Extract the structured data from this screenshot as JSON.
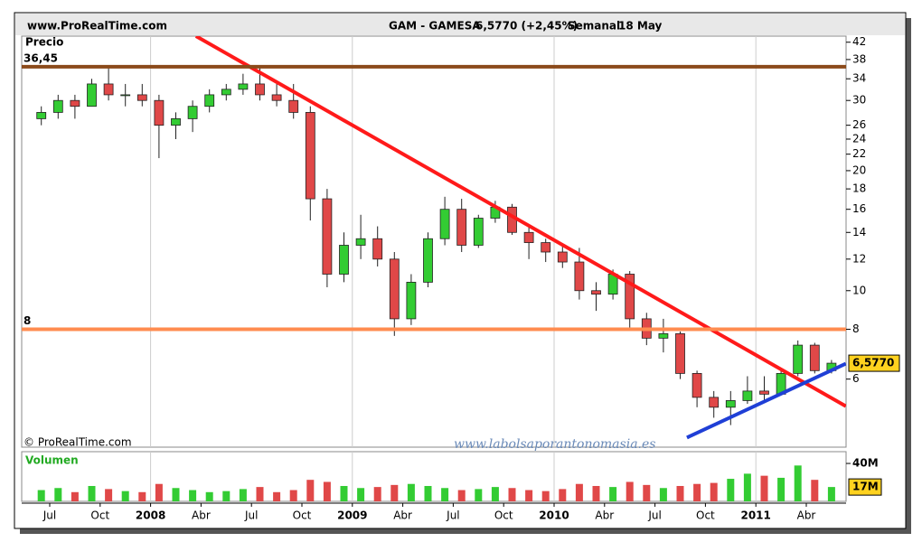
{
  "chart_data": {
    "type": "candlestick",
    "site": "www.ProRealTime.com",
    "title": "GAM - GAMESA",
    "quote": "6,5770 (+2,45%)",
    "period": "Semanal",
    "date": "18 May",
    "y_label": "Precio",
    "volume_label": "Volumen",
    "copyright": "© ProRealTime.com",
    "watermark": "www.labolsaporantonomasia.es",
    "categories": [
      null,
      "Jul",
      null,
      null,
      "Oct",
      null,
      null,
      "2008",
      null,
      null,
      "Abr",
      null,
      null,
      "Jul",
      null,
      null,
      "Oct",
      null,
      null,
      "2009",
      null,
      null,
      "Abr",
      null,
      null,
      "Jul",
      null,
      null,
      "Oct",
      null,
      null,
      "2010",
      null,
      null,
      "Abr",
      null,
      null,
      "Jul",
      null,
      null,
      "Oct",
      null,
      null,
      "2011",
      null,
      null,
      "Abr",
      null
    ],
    "open": [
      27,
      28,
      30,
      29,
      33,
      31,
      31,
      30,
      26,
      27,
      29,
      31,
      32,
      33,
      31,
      30,
      28,
      17,
      11,
      13,
      13.5,
      12,
      8.5,
      10.5,
      13.5,
      16,
      13,
      15.2,
      16.2,
      14,
      13.2,
      12.5,
      11.8,
      10,
      9.8,
      11,
      8.5,
      7.6,
      7.8,
      6.2,
      5.4,
      5.1,
      5.3,
      5.6,
      5.5,
      6.2,
      7.3,
      6.3
    ],
    "high": [
      29,
      31,
      31,
      34,
      36.5,
      33,
      33,
      31,
      28,
      30,
      32,
      33,
      35,
      36.5,
      33,
      33,
      29,
      18,
      14,
      15.5,
      14.5,
      12.5,
      11,
      14,
      17.2,
      17,
      15.5,
      16.8,
      16.5,
      14.5,
      13.5,
      13,
      12.8,
      10.5,
      11.3,
      11.2,
      8.8,
      8.5,
      7.9,
      6.3,
      5.6,
      5.6,
      6.1,
      6.1,
      6.3,
      7.5,
      7.4,
      6.7
    ],
    "low": [
      26,
      27,
      27,
      29,
      30,
      29,
      29,
      21.5,
      24,
      25,
      28,
      30,
      31,
      30,
      29,
      27,
      15,
      10.2,
      10.5,
      12,
      11.5,
      7.7,
      8.2,
      10.2,
      13,
      12.5,
      12.8,
      14.8,
      13.8,
      12,
      11.8,
      11.4,
      9.5,
      8.9,
      9.5,
      8,
      7.3,
      7,
      6,
      5.1,
      4.8,
      4.6,
      5.2,
      5.3,
      5.5,
      6.1,
      6.2,
      6.2
    ],
    "close": [
      28,
      30,
      29,
      33,
      31,
      31,
      30,
      26,
      27,
      29,
      31,
      32,
      33,
      31,
      30,
      28,
      17,
      11,
      13,
      13.5,
      12,
      8.5,
      10.5,
      13.5,
      16,
      13,
      15.2,
      16.2,
      14,
      13.2,
      12.5,
      11.8,
      10,
      9.8,
      11,
      8.5,
      7.6,
      7.8,
      6.2,
      5.4,
      5.1,
      5.3,
      5.6,
      5.5,
      6.2,
      7.3,
      6.3,
      6.577
    ],
    "volume": [
      14,
      16,
      12,
      18,
      15,
      13,
      12,
      20,
      16,
      14,
      12,
      13,
      15,
      17,
      12,
      14,
      24,
      22,
      18,
      16,
      17,
      19,
      20,
      18,
      16,
      14,
      15,
      17,
      16,
      14,
      13,
      15,
      20,
      18,
      17,
      22,
      19,
      16,
      18,
      20,
      21,
      25,
      30,
      28,
      26,
      38,
      24,
      17
    ],
    "up_color": "#33cc33",
    "down_color": "#e04848",
    "log_scale": true,
    "ylim": [
      4.05,
      43.5
    ],
    "yticks": [
      6,
      8,
      10,
      12,
      14,
      16,
      18,
      20,
      22,
      24,
      26,
      30,
      34,
      38,
      42
    ],
    "last_price": {
      "value": 6.577,
      "label": "6,5770"
    },
    "volume_ylim": [
      3,
      51.5
    ],
    "volume_ticks": [
      {
        "value": 40,
        "label": "40M"
      }
    ],
    "last_volume": {
      "value": 17,
      "label": "17M"
    },
    "levels": [
      {
        "value": 36.45,
        "label": "36,45",
        "color": "#8b4a1a"
      },
      {
        "value": 8,
        "color": "#ff8c50"
      }
    ],
    "trendlines": [
      {
        "color": "#ff1a1a",
        "from": [
          9.7,
          43.5
        ],
        "to": [
          48.35,
          5.13
        ]
      },
      {
        "color": "#1f3fd6",
        "from": [
          38.9,
          4.28
        ],
        "to": [
          48.35,
          6.56
        ]
      }
    ]
  }
}
